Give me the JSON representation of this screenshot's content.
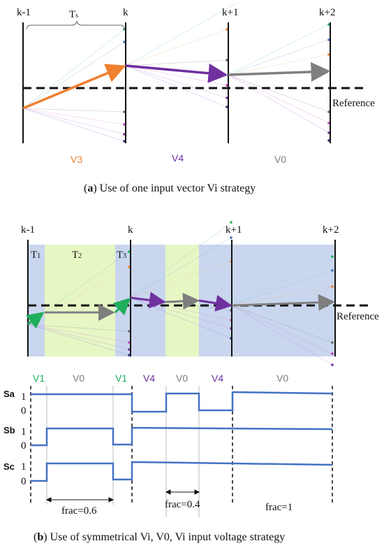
{
  "colors": {
    "orange": "#f07f2e",
    "purple": "#7030a0",
    "gray": "#7f7f7f",
    "green": "#1fae5b",
    "blue_bg": "#c9d6ee",
    "green_bg": "#e6f7c4",
    "signal": "#4472c4"
  },
  "panel_a": {
    "k_labels": [
      "k-1",
      "k",
      "k+1",
      "k+2"
    ],
    "ts_label": "T",
    "ts_sub": "s",
    "reference_label": "Reference",
    "vectors": [
      {
        "label": "V3",
        "color": "#f07f2e"
      },
      {
        "label": "V4",
        "color": "#7030a0"
      },
      {
        "label": "V0",
        "color": "#7f7f7f"
      }
    ],
    "caption_letter": "a",
    "caption_rest": ") Use of one input vector Vi strategy"
  },
  "panel_b": {
    "k_labels": [
      "k-1",
      "k",
      "k+1",
      "k+2"
    ],
    "t_labels": [
      {
        "main": "T",
        "sub": "1"
      },
      {
        "main": "T",
        "sub": "2"
      },
      {
        "main": "T",
        "sub": "3"
      }
    ],
    "reference_label": "Reference",
    "vectors": [
      {
        "label": "V1",
        "color": "#1fae5b"
      },
      {
        "label": "V0",
        "color": "#7f7f7f"
      },
      {
        "label": "V1",
        "color": "#1fae5b"
      },
      {
        "label": "V4",
        "color": "#7030a0"
      },
      {
        "label": "V0",
        "color": "#7f7f7f"
      },
      {
        "label": "V4",
        "color": "#7030a0"
      },
      {
        "label": "V0",
        "color": "#7f7f7f"
      }
    ],
    "signals": [
      {
        "name": "Sa",
        "high": "1",
        "low": "0"
      },
      {
        "name": "Sb",
        "high": "1",
        "low": "0"
      },
      {
        "name": "Sc",
        "high": "1",
        "low": "0"
      }
    ],
    "fracs": [
      "frac=0.6",
      "frac=0.4",
      "frac=1"
    ],
    "caption_letter": "b",
    "caption_rest": ") Use of symmetrical Vi, V0, Vi input voltage strategy"
  }
}
